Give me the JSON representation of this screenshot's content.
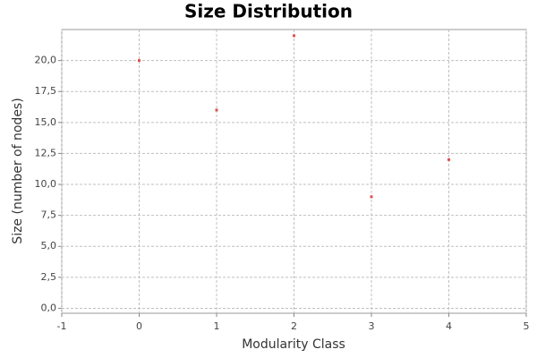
{
  "chart_data": {
    "type": "scatter",
    "title": "Size Distribution",
    "x_label": "Modularity Class",
    "y_label": "Size (number of nodes)",
    "x": [
      0,
      1,
      2,
      3,
      4
    ],
    "values": [
      20,
      16,
      22,
      9,
      12
    ],
    "color": "#e05050",
    "xlim": [
      -1,
      5
    ],
    "ylim": [
      -0.4,
      22.5
    ],
    "xticks": [
      -1,
      0,
      1,
      2,
      3,
      4,
      5
    ],
    "yticks": [
      {
        "value": 0,
        "label": "0,0"
      },
      {
        "value": 2.5,
        "label": "2,5"
      },
      {
        "value": 5,
        "label": "5,0"
      },
      {
        "value": 7.5,
        "label": "7,5"
      },
      {
        "value": 10,
        "label": "10,0"
      },
      {
        "value": 12.5,
        "label": "12,5"
      },
      {
        "value": 15,
        "label": "15,0"
      },
      {
        "value": 17.5,
        "label": "17,5"
      },
      {
        "value": 20,
        "label": "20,0"
      }
    ],
    "grid": true
  }
}
